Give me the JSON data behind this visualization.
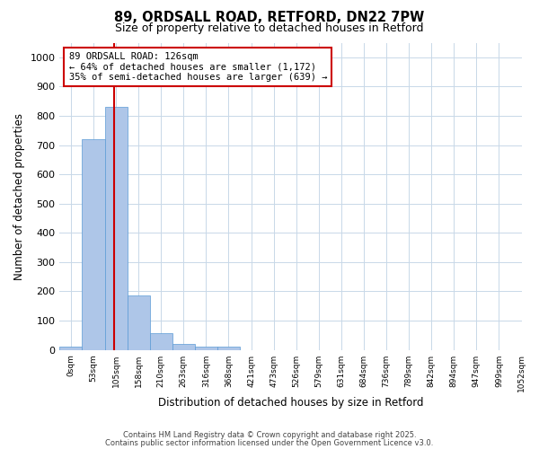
{
  "title": "89, ORDSALL ROAD, RETFORD, DN22 7PW",
  "subtitle": "Size of property relative to detached houses in Retford",
  "xlabel": "Distribution of detached houses by size in Retford",
  "ylabel": "Number of detached properties",
  "bar_color": "#aec6e8",
  "bar_edge_color": "#5b9bd5",
  "bin_labels": [
    "0sqm",
    "53sqm",
    "105sqm",
    "158sqm",
    "210sqm",
    "263sqm",
    "316sqm",
    "368sqm",
    "421sqm",
    "473sqm",
    "526sqm",
    "579sqm",
    "631sqm",
    "684sqm",
    "736sqm",
    "789sqm",
    "842sqm",
    "894sqm",
    "947sqm",
    "999sqm",
    "1052sqm"
  ],
  "bar_heights": [
    10,
    720,
    830,
    185,
    57,
    20,
    10,
    10,
    0,
    0,
    0,
    0,
    0,
    0,
    0,
    0,
    0,
    0,
    0,
    0
  ],
  "ylim": [
    0,
    1050
  ],
  "yticks": [
    0,
    100,
    200,
    300,
    400,
    500,
    600,
    700,
    800,
    900,
    1000
  ],
  "annotation_text": "89 ORDSALL ROAD: 126sqm\n← 64% of detached houses are smaller (1,172)\n35% of semi-detached houses are larger (639) →",
  "vline_color": "#cc0000",
  "annotation_box_color": "#cc0000",
  "footer1": "Contains HM Land Registry data © Crown copyright and database right 2025.",
  "footer2": "Contains public sector information licensed under the Open Government Licence v3.0.",
  "background_color": "#ffffff",
  "grid_color": "#c8d8e8"
}
